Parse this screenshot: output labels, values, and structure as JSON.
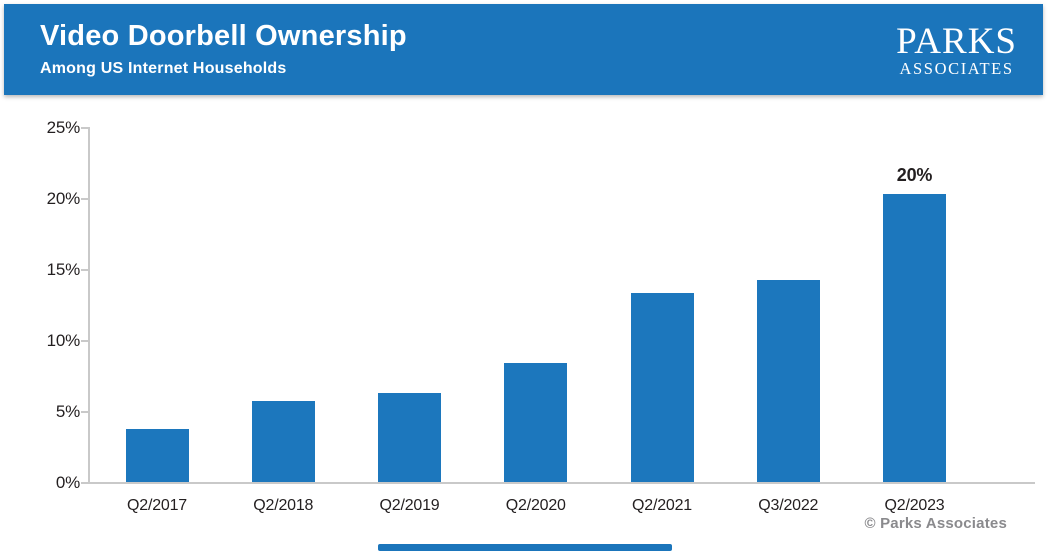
{
  "header": {
    "title": "Video Doorbell Ownership",
    "subtitle": "Among US Internet Households",
    "logo_line1": "PARKS",
    "logo_line2": "ASSOCIATES"
  },
  "footer": {
    "copyright": "© Parks Associates"
  },
  "colors": {
    "brand_blue": "#1B75BB",
    "bar_blue": "#1C77BD",
    "axis_gray": "#C9C9C9",
    "text_dark": "#231F20",
    "copyright_gray": "#8A8A8D"
  },
  "chart_data": {
    "type": "bar",
    "title": "Video Doorbell Ownership",
    "subtitle": "Among US Internet Households",
    "categories": [
      "Q2/2017",
      "Q2/2018",
      "Q2/2019",
      "Q2/2020",
      "Q2/2021",
      "Q3/2022",
      "Q2/2023"
    ],
    "values": [
      3.7,
      5.7,
      6.3,
      8.4,
      13.3,
      14.2,
      20.3
    ],
    "data_labels": [
      "",
      "",
      "",
      "",
      "",
      "",
      "20%"
    ],
    "xlabel": "",
    "ylabel": "",
    "ylim": [
      0,
      25
    ],
    "yticks": [
      0,
      5,
      10,
      15,
      20,
      25
    ],
    "ytick_labels": [
      "0%",
      "5%",
      "10%",
      "15%",
      "20%",
      "25%"
    ],
    "grid": false,
    "legend": null,
    "bar_color": "#1C77BD"
  }
}
